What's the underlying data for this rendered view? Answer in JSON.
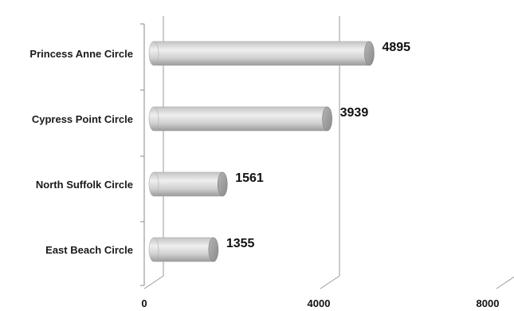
{
  "chart_data": {
    "type": "bar",
    "orientation": "horizontal",
    "style": "3d-cylinder",
    "categories": [
      "Princess Anne Circle",
      "Cypress Point Circle",
      "North Suffolk Circle",
      "East Beach Circle"
    ],
    "values": [
      4895,
      3939,
      1561,
      1355
    ],
    "data_labels": [
      "4895",
      "3939",
      "1561",
      "1355"
    ],
    "xticks": [
      "0",
      "4000",
      "8000"
    ],
    "xlim": [
      0,
      8000
    ],
    "grid": true,
    "legend": "none",
    "title": "",
    "xlabel": "",
    "ylabel": "",
    "colors": {
      "bar_light": "#f0f0f0",
      "bar_mid": "#c9c9c9",
      "bar_dark": "#8f8f8f",
      "axis": "#8a8a8a"
    }
  }
}
